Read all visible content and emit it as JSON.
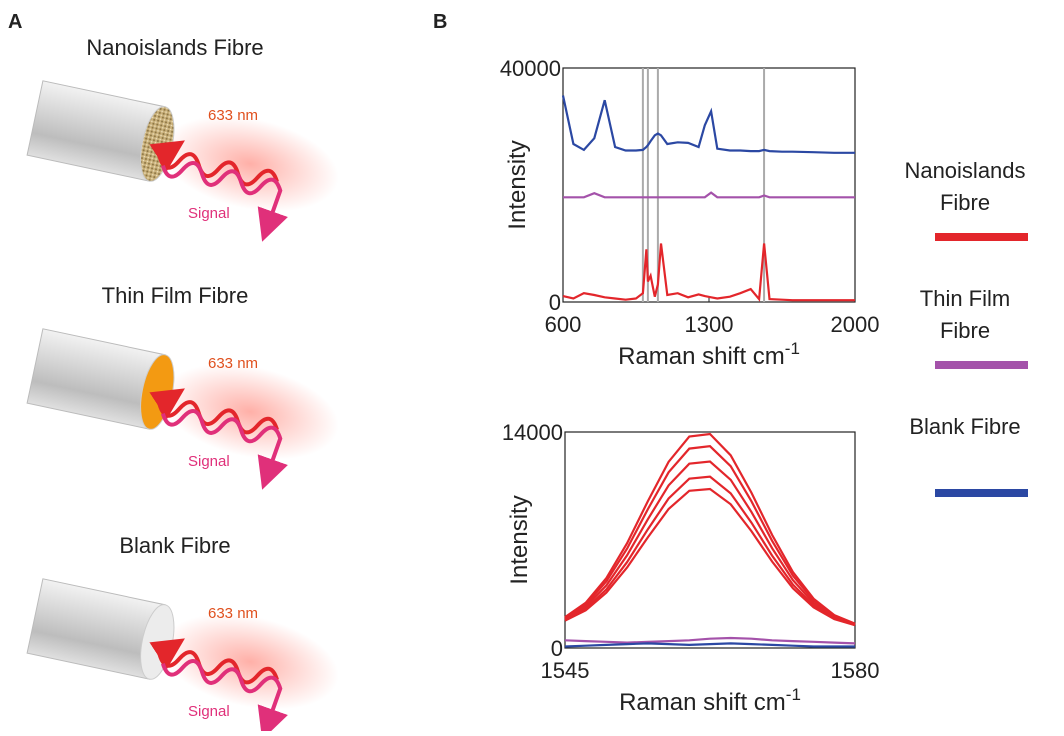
{
  "panel_a": {
    "label": "A",
    "fibres": [
      {
        "title": "Nanoislands Fibre",
        "laser": "633 nm",
        "signal": "Signal"
      },
      {
        "title": "Thin Film Fibre",
        "laser": "633 nm",
        "signal": "Signal"
      },
      {
        "title": "Blank Fibre",
        "laser": "633 nm",
        "signal": "Signal"
      }
    ]
  },
  "panel_b_label": "B",
  "chart_data": [
    {
      "type": "line",
      "x_label": {
        "text": "Raman shift cm",
        "superscript": "-1"
      },
      "y_label": "Intensity",
      "xlim": [
        600,
        2000
      ],
      "xticks": [
        600,
        1300,
        2000
      ],
      "ylim": [
        0,
        40000
      ],
      "yticks": [
        0,
        40000
      ],
      "vlines": [
        983,
        1007,
        1055,
        1564
      ],
      "x": [
        600,
        650,
        700,
        750,
        800,
        850,
        900,
        950,
        983,
        1000,
        1007,
        1020,
        1040,
        1055,
        1070,
        1100,
        1150,
        1200,
        1250,
        1280,
        1310,
        1340,
        1400,
        1450,
        1500,
        1540,
        1564,
        1590,
        1650,
        1700,
        1800,
        1900,
        2000
      ],
      "series": [
        {
          "name": "Nanoislands Fibre",
          "color": "#e3262b",
          "values": [
            1000,
            600,
            1500,
            1200,
            800,
            600,
            400,
            600,
            1500,
            9000,
            3500,
            4500,
            900,
            3000,
            10000,
            1200,
            1500,
            800,
            1300,
            1000,
            800,
            600,
            900,
            1500,
            2200,
            500,
            10000,
            500,
            400,
            300,
            300,
            300,
            300
          ]
        },
        {
          "name": "Thin Film Fibre",
          "color": "#a452aa",
          "values": [
            17900,
            17900,
            17900,
            18600,
            17900,
            17900,
            17900,
            17900,
            17900,
            17900,
            17900,
            17900,
            17900,
            17900,
            17900,
            17900,
            17900,
            17900,
            17900,
            17900,
            18700,
            17900,
            17900,
            17900,
            17900,
            17900,
            18200,
            17900,
            17900,
            17900,
            17900,
            17900,
            17900
          ]
        },
        {
          "name": "Blank Fibre",
          "color": "#2b48a3",
          "values": [
            35300,
            27000,
            26000,
            28000,
            34500,
            26500,
            25900,
            25900,
            26000,
            26500,
            26800,
            27500,
            28500,
            28800,
            28500,
            27000,
            27300,
            27200,
            26500,
            30200,
            32600,
            26200,
            25900,
            25900,
            25800,
            25800,
            26000,
            25800,
            25700,
            25700,
            25600,
            25500,
            25500
          ]
        }
      ]
    },
    {
      "type": "line",
      "x_label": {
        "text": "Raman shift cm",
        "superscript": "-1"
      },
      "y_label": "Intensity",
      "xlim": [
        1545,
        1580
      ],
      "xticks": [
        1545,
        1580
      ],
      "ylim": [
        0,
        14000
      ],
      "yticks": [
        0,
        14000
      ],
      "x": [
        1545,
        1547.5,
        1550,
        1552.5,
        1555,
        1557.5,
        1560,
        1562.5,
        1565,
        1567.5,
        1570,
        1572.5,
        1575,
        1577.5,
        1580
      ],
      "series": [
        {
          "color": "#e3262b",
          "values": [
            1994,
            2928,
            4528,
            6794,
            9520,
            12067,
            13706,
            13872,
            12490,
            10070,
            7331,
            4925,
            3197,
            2134,
            1584
          ]
        },
        {
          "color": "#e3262b",
          "values": [
            1944,
            2820,
            4320,
            6444,
            9000,
            11388,
            12924,
            13080,
            11784,
            9516,
            6948,
            4692,
            3072,
            2076,
            1560
          ]
        },
        {
          "color": "#e3262b",
          "values": [
            1882,
            2685,
            4060,
            6007,
            8350,
            10539,
            11947,
            12090,
            10902,
            8823,
            6469,
            4401,
            2916,
            2003,
            1530
          ]
        },
        {
          "color": "#e3262b",
          "values": [
            1820,
            2550,
            3800,
            5570,
            7700,
            9690,
            10970,
            11100,
            10020,
            8130,
            5990,
            4110,
            2760,
            1930,
            1500
          ]
        },
        {
          "color": "#e3262b",
          "values": [
            1770,
            2442,
            3592,
            5220,
            7180,
            9011,
            10188,
            10308,
            9314,
            7576,
            5607,
            3877,
            2635,
            1872,
            1476
          ]
        },
        {
          "color": "#a452aa",
          "values": [
            500,
            450,
            400,
            350,
            400,
            450,
            500,
            600,
            650,
            600,
            500,
            450,
            400,
            350,
            300
          ]
        },
        {
          "color": "#2b48a3",
          "values": [
            100,
            150,
            200,
            250,
            300,
            250,
            200,
            250,
            300,
            250,
            200,
            150,
            100,
            100,
            100
          ]
        }
      ]
    }
  ]
}
